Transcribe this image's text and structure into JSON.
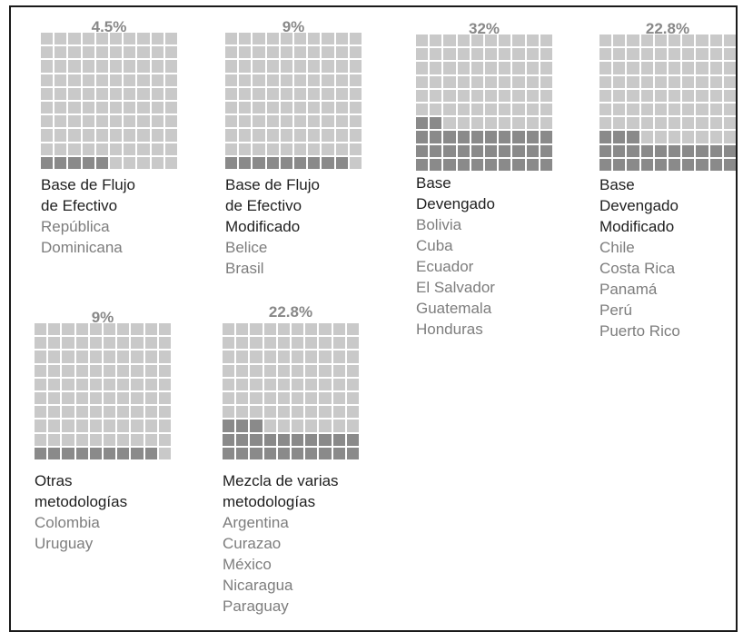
{
  "chart_data": {
    "type": "waffle",
    "grid_size": 100,
    "colors": {
      "filled": "#8a8a8a",
      "empty": "#c9c9c9"
    },
    "panels": [
      {
        "id": "flujo",
        "percent_label": "4.5%",
        "value": 4.5,
        "label": "Base de Flujo\nde Efectivo",
        "countries": [
          "República",
          "Dominicana"
        ]
      },
      {
        "id": "flujo-mod",
        "percent_label": "9%",
        "value": 9,
        "label": "Base de Flujo\nde Efectivo\nModificado",
        "countries": [
          "Belice",
          "Brasil"
        ]
      },
      {
        "id": "devengado",
        "percent_label": "32%",
        "value": 32,
        "label": "Base\nDevengado",
        "countries": [
          "Bolivia",
          "Cuba",
          "Ecuador",
          "El Salvador",
          "Guatemala",
          "Honduras"
        ]
      },
      {
        "id": "devengado-mod",
        "percent_label": "22.8%",
        "value": 22.8,
        "label": "Base\nDevengado\nModificado",
        "countries": [
          "Chile",
          "Costa Rica",
          "Panamá",
          "Perú",
          "Puerto Rico"
        ]
      },
      {
        "id": "otras",
        "percent_label": "9%",
        "value": 9,
        "label": "Otras\nmetodologías",
        "countries": [
          "Colombia",
          "Uruguay"
        ]
      },
      {
        "id": "mezcla",
        "percent_label": "22.8%",
        "value": 22.8,
        "label": "Mezcla de varias\nmetodologías",
        "countries": [
          "Argentina",
          "Curazao",
          "México",
          "Nicaragua",
          "Paraguay"
        ]
      }
    ]
  }
}
